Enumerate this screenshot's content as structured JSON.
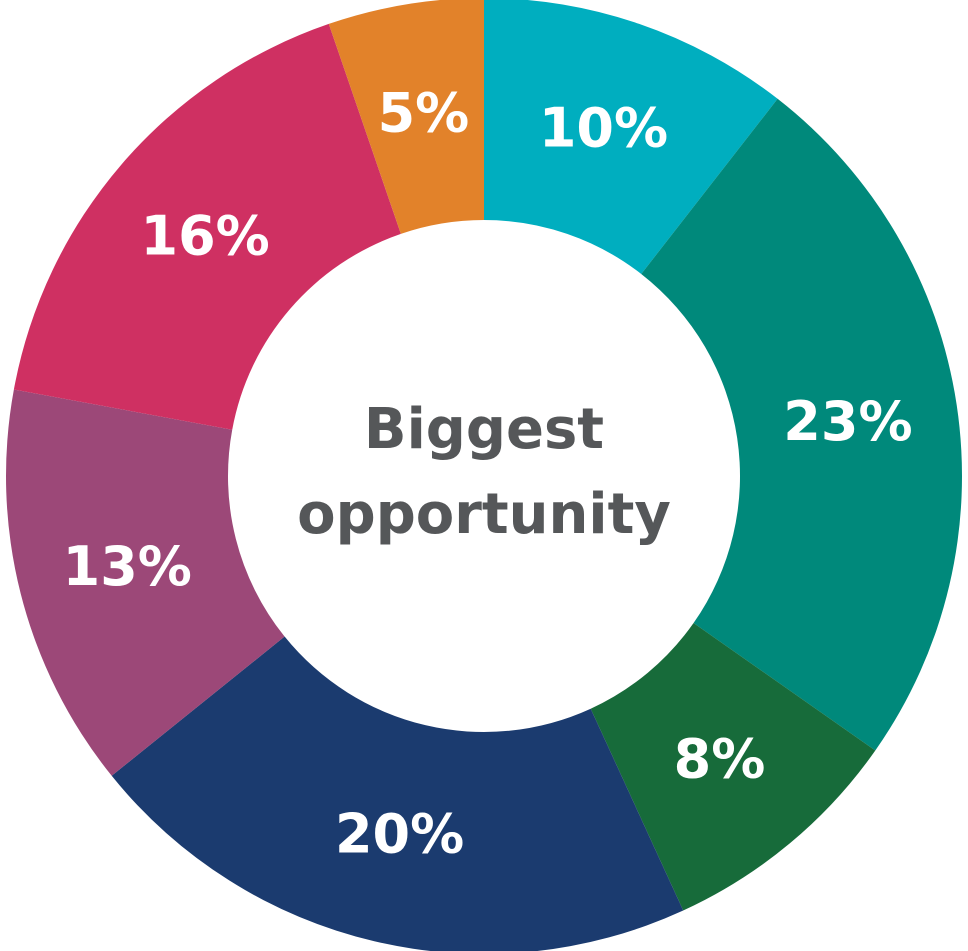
{
  "chart_data": {
    "type": "pie",
    "variant": "donut",
    "center_label": [
      "Biggest",
      "opportunity"
    ],
    "center_text_color": "#555759",
    "slices": [
      {
        "label": "10%",
        "value": 10,
        "color": "#00AEBF"
      },
      {
        "label": "23%",
        "value": 23,
        "color": "#00897B"
      },
      {
        "label": "8%",
        "value": 8,
        "color": "#176B3A"
      },
      {
        "label": "20%",
        "value": 20,
        "color": "#1B3B6F"
      },
      {
        "label": "13%",
        "value": 13,
        "color": "#9C4878"
      },
      {
        "label": "16%",
        "value": 16,
        "color": "#CF3062"
      },
      {
        "label": "5%",
        "value": 5,
        "color": "#E2822A"
      }
    ]
  }
}
